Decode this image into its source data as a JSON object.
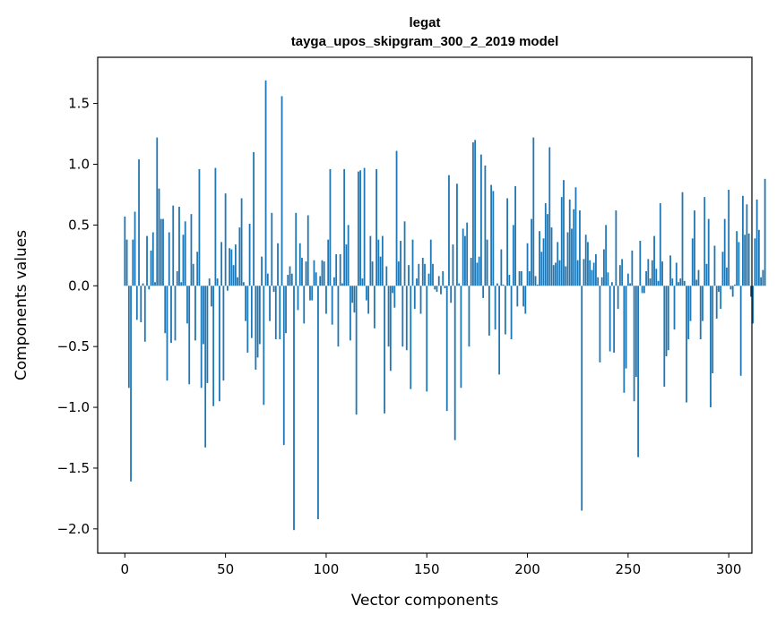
{
  "chart_data": {
    "type": "bar",
    "title": "legat",
    "subtitle": "tayga_upos_skipgram_300_2_2019 model",
    "xlabel": "Vector components",
    "ylabel": "Components values",
    "xlim": [
      -13.5,
      311.5
    ],
    "ylim": [
      -2.2,
      1.88
    ],
    "xticks": [
      0,
      50,
      100,
      150,
      200,
      250,
      300
    ],
    "yticks": [
      -2.0,
      -1.5,
      -1.0,
      -0.5,
      0.0,
      0.5,
      1.0,
      1.5
    ],
    "ytick_labels": [
      "−2.0",
      "−1.5",
      "−1.0",
      "−0.5",
      "0.0",
      "0.5",
      "1.0",
      "1.5"
    ],
    "bar_color": "#1f77b4",
    "series": [
      {
        "name": "legat",
        "values": [
          0.57,
          0.38,
          -0.84,
          -1.61,
          0.38,
          0.61,
          -0.28,
          1.04,
          -0.3,
          0.02,
          -0.46,
          0.41,
          -0.03,
          0.29,
          0.44,
          0.03,
          1.22,
          0.8,
          0.55,
          0.55,
          -0.39,
          -0.78,
          0.44,
          -0.47,
          0.66,
          -0.45,
          0.12,
          0.65,
          0.03,
          0.42,
          0.53,
          -0.31,
          -0.81,
          0.59,
          0.18,
          -0.45,
          0.28,
          0.96,
          -0.84,
          -0.48,
          -1.33,
          -0.8,
          0.06,
          -0.17,
          -0.99,
          0.97,
          0.06,
          -0.95,
          0.36,
          -0.78,
          0.76,
          -0.04,
          0.31,
          0.3,
          0.17,
          0.34,
          0.07,
          0.48,
          0.72,
          0.03,
          -0.29,
          -0.55,
          0.51,
          -0.43,
          1.1,
          -0.69,
          -0.59,
          -0.48,
          0.24,
          -0.98,
          1.69,
          0.1,
          -0.29,
          0.6,
          -0.05,
          -0.44,
          0.35,
          -0.44,
          1.56,
          -1.31,
          -0.39,
          0.09,
          0.16,
          0.1,
          -2.01,
          0.6,
          -0.2,
          0.35,
          0.23,
          -0.31,
          0.2,
          0.58,
          -0.12,
          -0.12,
          0.21,
          0.11,
          -1.92,
          0.08,
          0.21,
          0.2,
          -0.23,
          0.38,
          0.96,
          -0.32,
          0.07,
          0.26,
          -0.5,
          0.26,
          0.02,
          0.96,
          0.34,
          0.5,
          -0.45,
          -0.14,
          -0.22,
          -1.06,
          0.94,
          0.95,
          0.06,
          0.97,
          -0.12,
          -0.23,
          0.41,
          0.2,
          -0.35,
          0.96,
          0.38,
          0.24,
          0.41,
          -1.05,
          0.16,
          -0.5,
          -0.7,
          -0.06,
          -0.18,
          1.11,
          0.2,
          0.37,
          -0.5,
          0.53,
          -0.53,
          0.17,
          -0.85,
          0.38,
          -0.19,
          0.06,
          0.18,
          -0.23,
          0.23,
          0.18,
          -0.87,
          0.1,
          0.38,
          0.18,
          -0.03,
          -0.05,
          0.08,
          -0.07,
          0.12,
          -0.02,
          -1.03,
          0.91,
          -0.14,
          0.34,
          -1.27,
          0.84,
          0.02,
          -0.84,
          0.47,
          0.41,
          0.52,
          -0.5,
          0.23,
          1.18,
          1.2,
          0.19,
          0.24,
          1.08,
          -0.1,
          0.99,
          0.38,
          -0.41,
          0.83,
          0.78,
          -0.36,
          0.02,
          -0.73,
          0.3,
          0.01,
          -0.4,
          0.72,
          0.09,
          -0.44,
          0.5,
          0.82,
          -0.17,
          0.12,
          0.12,
          -0.17,
          -0.23,
          0.35,
          0.12,
          0.55,
          1.22,
          0.08,
          0.01,
          0.45,
          0.28,
          0.39,
          0.68,
          0.59,
          1.14,
          0.48,
          0.17,
          0.19,
          0.36,
          0.21,
          0.73,
          0.87,
          0.16,
          0.44,
          0.71,
          0.47,
          0.63,
          0.81,
          0.21,
          0.62,
          -1.85,
          0.22,
          0.42,
          0.36,
          0.21,
          0.13,
          0.19,
          0.26,
          0.07,
          -0.63,
          0.07,
          0.3,
          0.5,
          0.11,
          -0.54,
          0.03,
          -0.55,
          0.62,
          -0.19,
          0.17,
          0.22,
          -0.88,
          -0.68,
          0.1,
          0.02,
          0.29,
          -0.95,
          -0.75,
          -1.41,
          0.37,
          -0.06,
          -0.06,
          0.12,
          0.22,
          0.06,
          0.21,
          0.41,
          0.14,
          0.04,
          0.68,
          0.2,
          -0.83,
          -0.58,
          -0.53,
          0.25,
          0.06,
          -0.36,
          0.19,
          0.03,
          0.06,
          0.77,
          0.04,
          -0.96,
          -0.44,
          -0.29,
          0.39,
          0.62,
          0.05,
          0.13,
          -0.44,
          -0.29,
          0.73,
          0.18,
          0.55,
          -1.0,
          -0.72,
          0.33,
          -0.27,
          -0.05,
          -0.19,
          0.28,
          0.55,
          0.15,
          0.79,
          -0.03,
          -0.09,
          0.01,
          0.45,
          0.36,
          -0.74,
          0.74,
          0.42,
          0.67,
          0.43,
          -0.09,
          -0.31,
          0.39,
          0.71,
          0.46,
          0.07,
          0.13,
          0.88
        ]
      }
    ],
    "legend": "none",
    "grid": false
  }
}
